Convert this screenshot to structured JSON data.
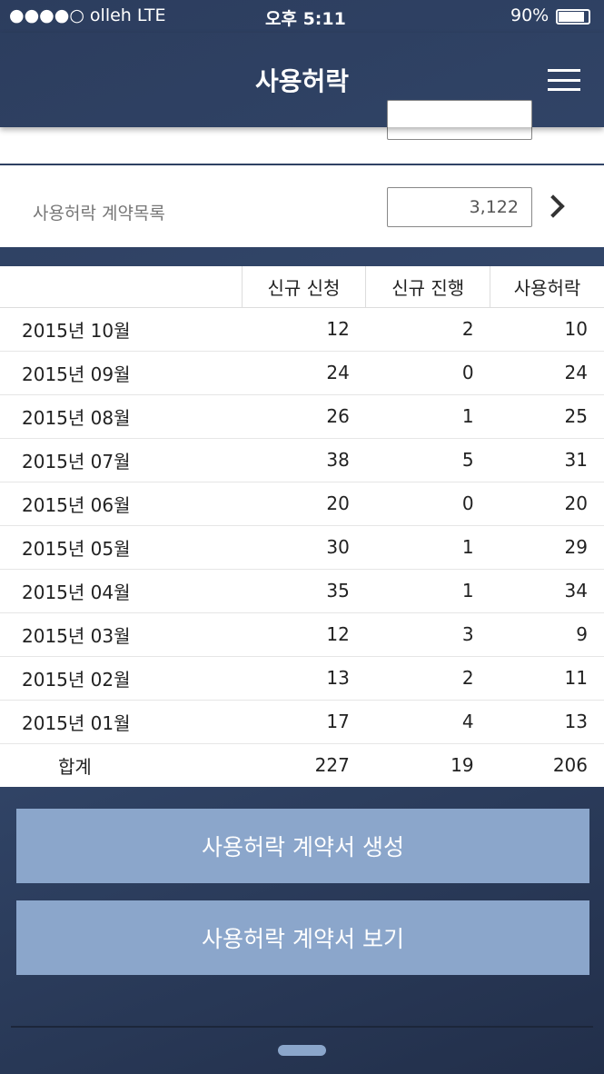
{
  "status_bar": {
    "carrier": "●●●●○ olleh   LTE",
    "time": "오후 5:11",
    "battery": "90%"
  },
  "header": {
    "title": "사용허락"
  },
  "summary": {
    "label": "사용허락 계약목록",
    "value": "3,122"
  },
  "table": {
    "columns": [
      "",
      "신규 신청",
      "신규 진행",
      "사용허락"
    ],
    "rows": [
      [
        "2015년 10월",
        12,
        2,
        10
      ],
      [
        "2015년 09월",
        24,
        0,
        24
      ],
      [
        "2015년 08월",
        26,
        1,
        25
      ],
      [
        "2015년 07월",
        38,
        5,
        31
      ],
      [
        "2015년 06월",
        20,
        0,
        20
      ],
      [
        "2015년 05월",
        30,
        1,
        29
      ],
      [
        "2015년 04월",
        35,
        1,
        34
      ],
      [
        "2015년 03월",
        12,
        3,
        9
      ],
      [
        "2015년 02월",
        13,
        2,
        11
      ],
      [
        "2015년 01월",
        17,
        4,
        13
      ]
    ],
    "total": [
      "합계",
      227,
      19,
      206
    ]
  },
  "buttons": [
    "사용허락 계약서 생성",
    "사용허락 계약서 보기"
  ]
}
